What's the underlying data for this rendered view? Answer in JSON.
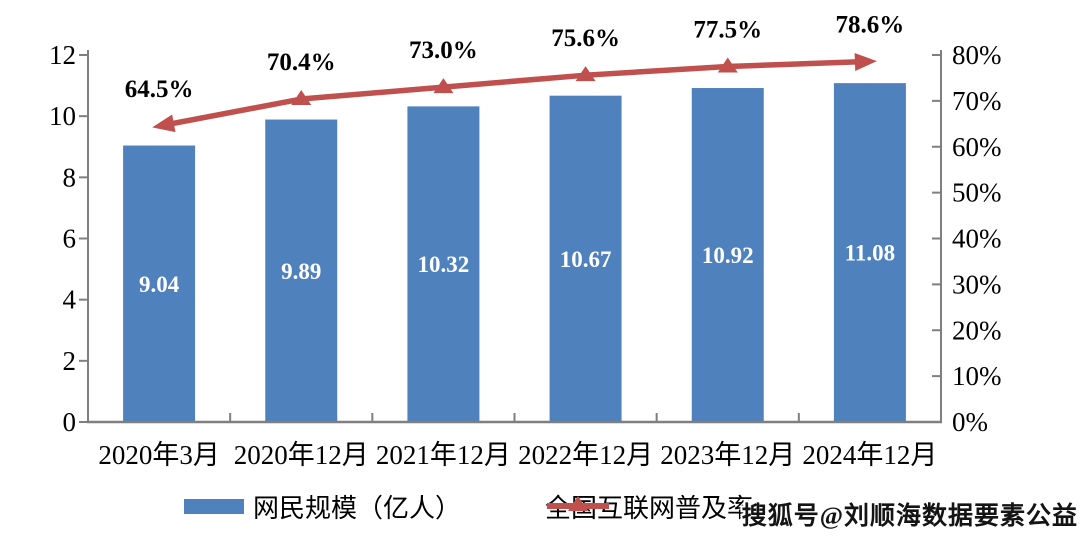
{
  "chart_data": {
    "type": "bar+line",
    "categories": [
      "2020年3月",
      "2020年12月",
      "2021年12月",
      "2022年12月",
      "2023年12月",
      "2024年12月"
    ],
    "series": [
      {
        "name": "网民规模（亿人）",
        "type": "bar",
        "axis": "left",
        "values": [
          9.04,
          9.89,
          10.32,
          10.67,
          10.92,
          11.08
        ],
        "labels": [
          "9.04",
          "9.89",
          "10.32",
          "10.67",
          "10.92",
          "11.08"
        ],
        "color": "#4F81BD"
      },
      {
        "name": "全国互联网普及率",
        "type": "line",
        "axis": "right",
        "values": [
          64.5,
          70.4,
          73.0,
          75.6,
          77.5,
          78.6
        ],
        "labels": [
          "64.5%",
          "70.4%",
          "73.0%",
          "75.6%",
          "77.5%",
          "78.6%"
        ],
        "color": "#C0504D",
        "marker": "triangle",
        "line_ends": "arrowheads"
      }
    ],
    "left_axis": {
      "min": 0,
      "max": 12,
      "step": 2,
      "ticks": [
        "0",
        "2",
        "4",
        "6",
        "8",
        "10",
        "12"
      ]
    },
    "right_axis": {
      "min": 0,
      "max": 80,
      "step": 10,
      "ticks": [
        "0%",
        "10%",
        "20%",
        "30%",
        "40%",
        "50%",
        "60%",
        "70%",
        "80%"
      ]
    },
    "grid": false,
    "legend_position": "bottom"
  },
  "watermark": {
    "text": "搜狐号@刘顺海数据要素公益"
  },
  "colors": {
    "bar": "#4F81BD",
    "line": "#C0504D",
    "axis": "#7F7F7F",
    "bar_label_text": "#FFFFFF",
    "text": "#000000",
    "background": "#FFFFFF"
  }
}
